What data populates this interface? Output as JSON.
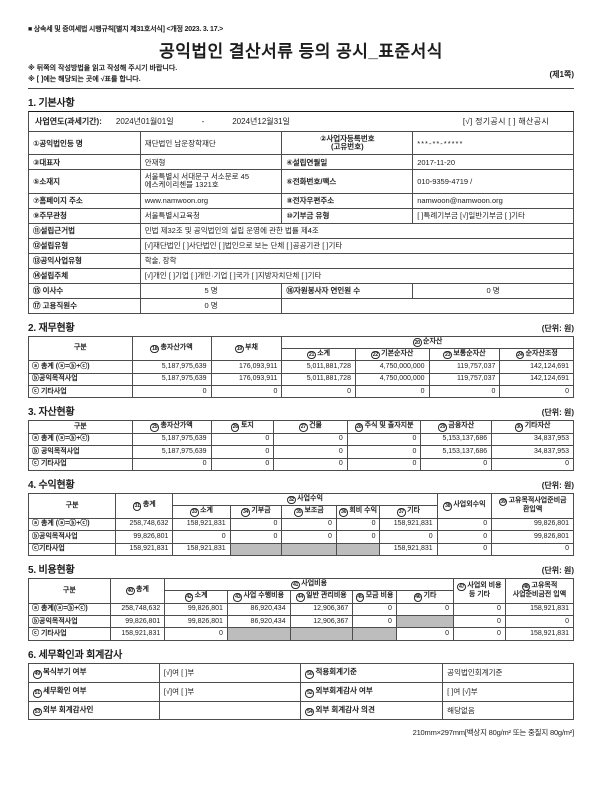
{
  "doc": {
    "regulation": "■ 상속세 및 증여세법 시행규칙[별지 제31호서식] <개정 2023. 3. 17.>",
    "title": "공익법인 결산서류 등의 공시_표준서식",
    "note1": "※ 뒤쪽의 작성방법을 읽고 작성해 주시기 바랍니다.",
    "note2": "※ [ ]에는 해당되는 곳에 √표를 합니다.",
    "page_marker": "(제1쪽)",
    "paper_spec": "210mm×297mm[백상지 80g/m² 또는 중질지 80g/m²]"
  },
  "basic": {
    "title": "1. 기본사항",
    "period_label": "사업연도(과세기간):",
    "period_start": "2024년01월01일",
    "period_dash": "-",
    "period_end": "2024년12월31일",
    "disclosure": "[√] 정기공시  [ ] 해산공시",
    "rows": [
      {
        "l1": "①공익법인등 명",
        "v1": "재단법인 남운장학재단",
        "l2a": "②사업자등록번호",
        "l2b": "(고유번호)",
        "v2": "***-**-*****"
      },
      {
        "l1": "③대표자",
        "v1": "안재형",
        "l2": "④설립연월일",
        "v2": "2017-11-20"
      },
      {
        "l1": "⑤소재지",
        "v1": "서울특별시 서대문구 서소문로 45 에스케이리첸블 1321호",
        "l2": "⑥전화번호/팩스",
        "v2": "010-9359-4719  /"
      },
      {
        "l1": "⑦홈페이지 주소",
        "v1": "www.namwoon.org",
        "l2": "⑧전자우편주소",
        "v2": "namwoon@namwoon.org"
      },
      {
        "l1": "⑨주무관청",
        "v1": "서울특별시교육청",
        "l2": "⑩기부금 유형",
        "v2": "[ ]특례기부금 [√]일반기부금 [ ]기타"
      }
    ],
    "full_rows": [
      {
        "l": "⑪설립근거법",
        "v": "민법 제32조 및 공익법인의 설립 운영에 관한 법률 제4조"
      },
      {
        "l": "⑫설립유형",
        "v": "[√]재단법인 [ ]사단법인 [ ]법인으로 보는 단체 [ ]공공기관 [ ]기타"
      },
      {
        "l": "⑬공익사업유형",
        "v": "학술, 장학"
      },
      {
        "l": "⑭설립주체",
        "v": "[√]개인 [ ]기업 [ ]개인·기업 [ ]국가 [ ]지방자치단체 [ ]기타"
      }
    ],
    "count_rows": [
      {
        "l1": "⑮ 이사수",
        "v1": "5  명",
        "l2": "⑯자원봉사자 연인원 수",
        "v2": "0  명"
      },
      {
        "l1": "⑰ 고용직원수",
        "v1": "0  명"
      }
    ]
  },
  "finance": {
    "title": "2. 재무현황",
    "unit": "(단위: 원)",
    "col_gubun": "구분",
    "h_total": {
      "num": "18",
      "label": "총자산가액"
    },
    "h_debt": {
      "num": "19",
      "label": "부채"
    },
    "h_net": {
      "num": "20",
      "label": "순자산"
    },
    "h_net_sub": [
      {
        "num": "21",
        "label": "소계"
      },
      {
        "num": "22",
        "label": "기본순자산"
      },
      {
        "num": "23",
        "label": "보통순자산"
      },
      {
        "num": "24",
        "label": "순자산조정"
      }
    ],
    "rows": [
      [
        "ⓐ 총계 (ⓐ=ⓑ+ⓒ)",
        "5,187,975,639",
        "176,093,911",
        "5,011,881,728",
        "4,750,000,000",
        "119,757,037",
        "142,124,691"
      ],
      [
        "ⓑ공익목적사업",
        "5,187,975,639",
        "176,093,911",
        "5,011,881,728",
        "4,750,000,000",
        "119,757,037",
        "142,124,691"
      ],
      [
        "ⓒ 기타사업",
        "0",
        "0",
        "0",
        "0",
        "0",
        "0"
      ]
    ]
  },
  "assets": {
    "title": "3. 자산현황",
    "unit": "(단위: 원)",
    "col_gubun": "구분",
    "headers": [
      {
        "num": "25",
        "label": "총자산가액"
      },
      {
        "num": "26",
        "label": "토지"
      },
      {
        "num": "27",
        "label": "건물"
      },
      {
        "num": "28",
        "label": "주식 및 출자지분"
      },
      {
        "num": "29",
        "label": "금융자산"
      },
      {
        "num": "30",
        "label": "기타자산"
      }
    ],
    "rows": [
      [
        "ⓐ 총계 (ⓐ=ⓑ+ⓒ)",
        "5,187,975,639",
        "0",
        "0",
        "0",
        "5,153,137,686",
        "34,837,953"
      ],
      [
        "ⓑ 공익목적사업",
        "5,187,975,639",
        "0",
        "0",
        "0",
        "5,153,137,686",
        "34,837,953"
      ],
      [
        "ⓒ 기타사업",
        "0",
        "0",
        "0",
        "0",
        "0",
        "0"
      ]
    ]
  },
  "revenue": {
    "title": "4. 수익현황",
    "unit": "(단위: 원)",
    "col_gubun": "구분",
    "h_total": {
      "num": "31",
      "label": "총계"
    },
    "h_group": {
      "num": "32",
      "label": "사업수익"
    },
    "subs": [
      {
        "num": "33",
        "label": "소계"
      },
      {
        "num": "34",
        "label": "기부금"
      },
      {
        "num": "35",
        "label": "보조금"
      },
      {
        "num": "36",
        "label": "회비 수익"
      },
      {
        "num": "37",
        "label": "기타"
      }
    ],
    "h_nonbiz": {
      "num": "38",
      "label": "사업외수익"
    },
    "h_reserve": {
      "num": "39",
      "label": "고유목적사업준비금 환입액"
    },
    "rows": [
      [
        "ⓐ 총계 (ⓐ=ⓑ+ⓒ)",
        "258,748,632",
        "158,921,831",
        "0",
        "0",
        "0",
        "158,921,831",
        "0",
        "99,826,801"
      ],
      [
        "ⓑ공익목적사업",
        "99,826,801",
        "0",
        "0",
        "0",
        "0",
        "0",
        "0",
        "99,826,801"
      ],
      [
        "ⓒ기타사업",
        "158,921,831",
        "158,921,831",
        null,
        null,
        null,
        "158,921,831",
        "0",
        "0"
      ]
    ]
  },
  "expense": {
    "title": "5. 비용현황",
    "unit": "(단위: 원)",
    "col_gubun": "구분",
    "h_total": {
      "num": "40",
      "label": "총계"
    },
    "h_group": {
      "num": "41",
      "label": "사업비용"
    },
    "subs": [
      {
        "num": "42",
        "label": "소계"
      },
      {
        "num": "43",
        "label": "사업 수행비용"
      },
      {
        "num": "44",
        "label": "일반 관리비용"
      },
      {
        "num": "45",
        "label": "모금 비용"
      },
      {
        "num": "46",
        "label": "기타"
      }
    ],
    "h_nonbiz": {
      "num": "47",
      "label": "사업외 비용 등 기타"
    },
    "h_reserve": {
      "num": "48",
      "label": "고유목적 사업준비금전 입액"
    },
    "rows": [
      [
        "ⓐ 총계(ⓐ=ⓑ+ⓒ)",
        "258,748,632",
        "99,826,801",
        "86,920,434",
        "12,906,367",
        "0",
        "0",
        "0",
        "158,921,831"
      ],
      [
        "ⓑ공익목적사업",
        "99,826,801",
        "99,826,801",
        "86,920,434",
        "12,906,367",
        "0",
        null,
        "0",
        "0"
      ],
      [
        "ⓒ 기타사업",
        "158,921,831",
        "0",
        null,
        null,
        null,
        "0",
        "0",
        "158,921,831"
      ]
    ]
  },
  "audit": {
    "title": "6. 세무확인과 회계감사",
    "r1": {
      "n1": "49",
      "l1": "복식부기 여부",
      "v1": "[√]여  [ ]부",
      "n2": "50",
      "l2": "적용회계기준",
      "v2": "공익법인회계기준"
    },
    "r2": {
      "n1": "51",
      "l1": "세무확인 여부",
      "v1": "[√]여  [ ]부",
      "n2": "52",
      "l2": "외부회계감사 여부",
      "v2": "[ ]여  [√]부"
    },
    "r3": {
      "n1": "53",
      "l1": "외부 회계감사인",
      "v1": "",
      "n2": "54",
      "l2": "외부 회계감사 의견",
      "v2": "해당없음"
    }
  }
}
